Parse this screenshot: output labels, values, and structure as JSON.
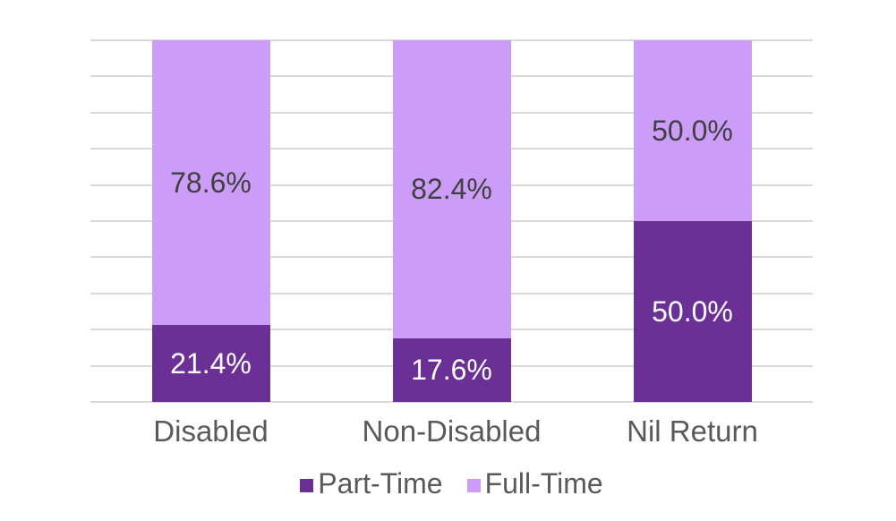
{
  "chart_data": {
    "type": "bar",
    "stacked": true,
    "title": "",
    "xlabel": "",
    "ylabel": "",
    "categories": [
      "Disabled",
      "Non-Disabled",
      "Nil Return"
    ],
    "series": [
      {
        "name": "Part-Time",
        "color": "#6B3096",
        "label_color": "#FFFFFF",
        "values": [
          21.4,
          17.6,
          50.0
        ],
        "labels": [
          "21.4%",
          "17.6%",
          "50.0%"
        ]
      },
      {
        "name": "Full-Time",
        "color": "#CB9CF8",
        "label_color": "#404040",
        "values": [
          78.6,
          82.4,
          50.0
        ],
        "labels": [
          "78.6%",
          "82.4%",
          "50.0%"
        ]
      }
    ],
    "ylim": [
      0,
      100
    ],
    "gridline_step": 10,
    "grid": true,
    "gridline_color": "#D9D9D9",
    "axis_line_color": "#D9D9D9",
    "category_label_color": "#595959",
    "legend_label_color": "#595959",
    "legend_position": "bottom",
    "y_axis_tick_labels_visible": false
  }
}
